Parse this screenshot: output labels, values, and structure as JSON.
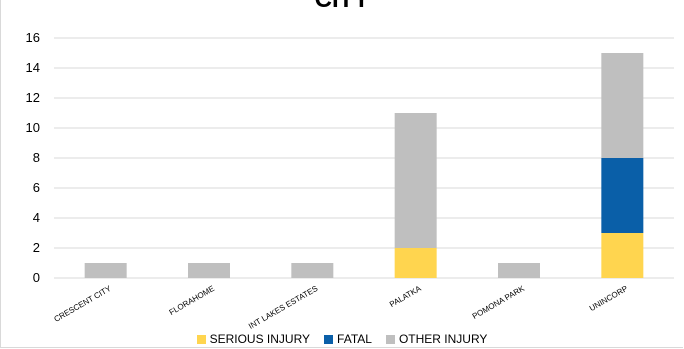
{
  "chart_data": {
    "type": "bar",
    "stacked": true,
    "title": "CITY",
    "categories": [
      "CRESCENT CITY",
      "FLORAHOME",
      "INT LAKES ESTATES",
      "PALATKA",
      "POMONA PARK",
      "UNINCORP"
    ],
    "series": [
      {
        "name": "SERIOUS INJURY",
        "color": "#ffd54f",
        "values": [
          0,
          0,
          0,
          2,
          0,
          3
        ]
      },
      {
        "name": "FATAL",
        "color": "#0a5fa8",
        "values": [
          0,
          0,
          0,
          0,
          0,
          5
        ]
      },
      {
        "name": "OTHER INJURY",
        "color": "#bfbfbf",
        "values": [
          1,
          1,
          1,
          9,
          1,
          7
        ]
      }
    ],
    "ylim": [
      0,
      16
    ],
    "yticks": [
      0,
      2,
      4,
      6,
      8,
      10,
      12,
      14,
      16
    ],
    "grid": true,
    "legend_position": "bottom"
  }
}
